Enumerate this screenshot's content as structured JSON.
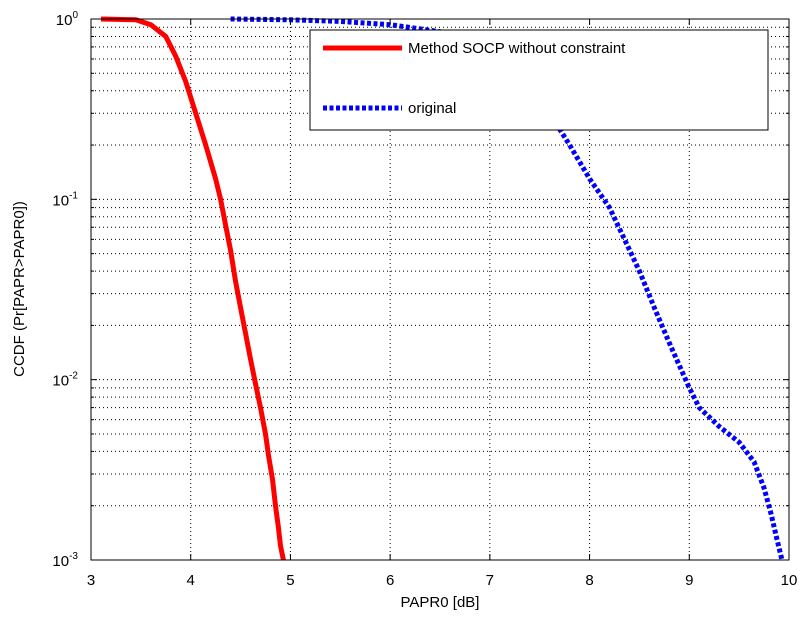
{
  "chart_data": {
    "type": "line",
    "title": "",
    "xlabel": "PAPR0 [dB]",
    "ylabel": "CCDF (Pr[PAPR>PAPR0])",
    "xlim": [
      3,
      10
    ],
    "ylim": [
      0.001,
      1
    ],
    "yscale": "log",
    "grid": true,
    "legend_position": "top-right",
    "x_ticks": [
      "3",
      "4",
      "5",
      "6",
      "7",
      "8",
      "9",
      "10"
    ],
    "y_ticks": [
      {
        "base": "10",
        "exp": "-3",
        "value": 0.001
      },
      {
        "base": "10",
        "exp": "-2",
        "value": 0.01
      },
      {
        "base": "10",
        "exp": "-1",
        "value": 0.1
      },
      {
        "base": "10",
        "exp": "0",
        "value": 1
      }
    ],
    "series": [
      {
        "name": "Method SOCP without constraint",
        "color": "#ff0000",
        "style": "solid",
        "x": [
          3.1,
          3.45,
          3.6,
          3.75,
          3.85,
          3.95,
          4.05,
          4.15,
          4.25,
          4.3,
          4.35,
          4.4,
          4.45,
          4.5,
          4.55,
          4.6,
          4.65,
          4.7,
          4.75,
          4.78,
          4.82,
          4.85,
          4.88,
          4.9,
          4.93
        ],
        "y": [
          1.0,
          0.99,
          0.93,
          0.8,
          0.62,
          0.45,
          0.3,
          0.2,
          0.13,
          0.1,
          0.072,
          0.052,
          0.035,
          0.025,
          0.018,
          0.013,
          0.0095,
          0.007,
          0.005,
          0.0038,
          0.0028,
          0.002,
          0.0015,
          0.0012,
          0.001
        ]
      },
      {
        "name": "original",
        "color": "#0000ff",
        "style": "dotted",
        "x": [
          4.4,
          5.0,
          5.5,
          6.0,
          6.5,
          7.0,
          7.4,
          7.6,
          7.8,
          8.0,
          8.2,
          8.35,
          8.5,
          8.65,
          8.8,
          8.9,
          9.0,
          9.1,
          9.3,
          9.5,
          9.65,
          9.75,
          9.82,
          9.88,
          9.93
        ],
        "y": [
          1.0,
          0.99,
          0.97,
          0.93,
          0.85,
          0.7,
          0.45,
          0.3,
          0.2,
          0.13,
          0.09,
          0.06,
          0.04,
          0.025,
          0.016,
          0.012,
          0.009,
          0.007,
          0.0055,
          0.0045,
          0.0035,
          0.0025,
          0.0018,
          0.0013,
          0.001
        ]
      }
    ]
  }
}
